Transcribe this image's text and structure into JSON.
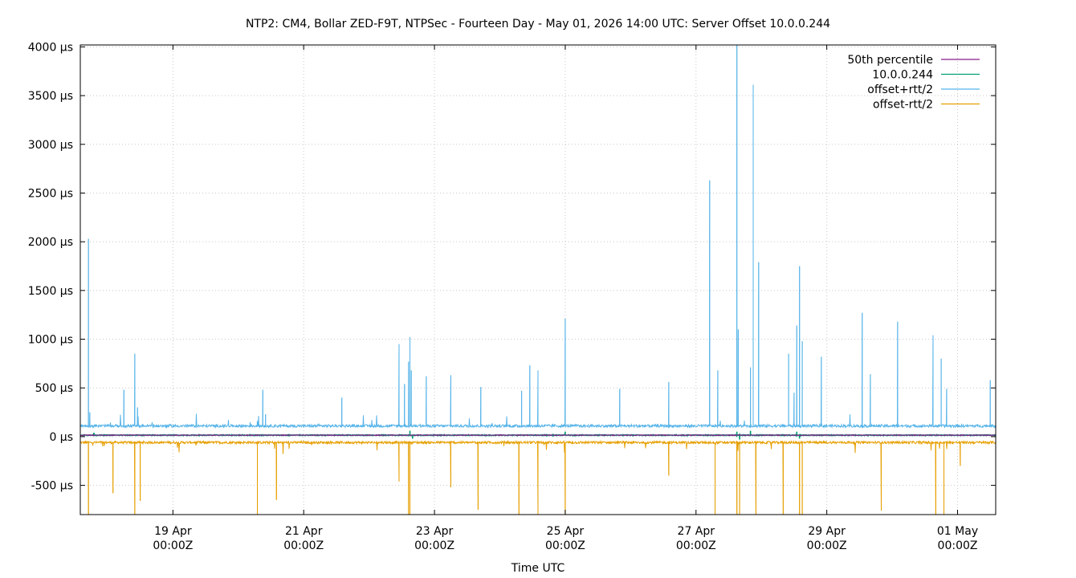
{
  "chart_data": {
    "type": "line",
    "title": "NTP2: CM4, Bollar ZED-F9T, NTPSec - Fourteen Day - May 01, 2026 14:00 UTC: Server Offset 10.0.0.244",
    "xlabel": "Time UTC",
    "ylabel": "",
    "y_unit": "µs",
    "xlim": [
      "2026-04-17T14:00Z",
      "2026-05-01T14:00Z"
    ],
    "ylim": [
      -800,
      4020
    ],
    "x_ticks": [
      {
        "x": "2026-04-19T00:00Z",
        "line1": "19 Apr",
        "line2": "00:00Z"
      },
      {
        "x": "2026-04-21T00:00Z",
        "line1": "21 Apr",
        "line2": "00:00Z"
      },
      {
        "x": "2026-04-23T00:00Z",
        "line1": "23 Apr",
        "line2": "00:00Z"
      },
      {
        "x": "2026-04-25T00:00Z",
        "line1": "25 Apr",
        "line2": "00:00Z"
      },
      {
        "x": "2026-04-27T00:00Z",
        "line1": "27 Apr",
        "line2": "00:00Z"
      },
      {
        "x": "2026-04-29T00:00Z",
        "line1": "29 Apr",
        "line2": "00:00Z"
      },
      {
        "x": "2026-05-01T00:00Z",
        "line1": "01 May",
        "line2": "00:00Z"
      }
    ],
    "y_ticks": [
      {
        "value": -500,
        "label": "-500 µs"
      },
      {
        "value": 0,
        "label": "0 µs"
      },
      {
        "value": 500,
        "label": "500 µs"
      },
      {
        "value": 1000,
        "label": "1000 µs"
      },
      {
        "value": 1500,
        "label": "1500 µs"
      },
      {
        "value": 2000,
        "label": "2000 µs"
      },
      {
        "value": 2500,
        "label": "2500 µs"
      },
      {
        "value": 3000,
        "label": "3000 µs"
      },
      {
        "value": 3500,
        "label": "3500 µs"
      },
      {
        "value": 4000,
        "label": "4000 µs"
      }
    ],
    "grid": true,
    "legend_position": "top-right",
    "series": [
      {
        "name": "50th percentile",
        "color": "#8b1a8b",
        "baseline": 15,
        "points": []
      },
      {
        "name": "10.0.0.244",
        "color": "#009e73",
        "baseline": 15,
        "points": [
          [
            "2026-04-17T19:00Z",
            40
          ],
          [
            "2026-04-22T15:00Z",
            60
          ],
          [
            "2026-04-22T16:00Z",
            -20
          ],
          [
            "2026-04-25T00:00Z",
            50
          ],
          [
            "2026-04-27T15:00Z",
            50
          ],
          [
            "2026-04-27T16:00Z",
            -30
          ],
          [
            "2026-04-27T20:00Z",
            60
          ],
          [
            "2026-04-28T13:00Z",
            50
          ],
          [
            "2026-04-28T14:00Z",
            -20
          ]
        ]
      },
      {
        "name": "offset+rtt/2",
        "color": "#56b4e9",
        "baseline": 110,
        "points": [
          [
            "2026-04-17T17:00Z",
            2030
          ],
          [
            "2026-04-17T17:30Z",
            250
          ],
          [
            "2026-04-18T06:00Z",
            480
          ],
          [
            "2026-04-18T10:00Z",
            850
          ],
          [
            "2026-04-18T11:00Z",
            300
          ],
          [
            "2026-04-20T09:00Z",
            480
          ],
          [
            "2026-04-20T10:00Z",
            230
          ],
          [
            "2026-04-21T14:00Z",
            400
          ],
          [
            "2026-04-22T11:00Z",
            950
          ],
          [
            "2026-04-22T13:00Z",
            540
          ],
          [
            "2026-04-22T14:30Z",
            770
          ],
          [
            "2026-04-22T15:00Z",
            1020
          ],
          [
            "2026-04-22T15:30Z",
            680
          ],
          [
            "2026-04-22T21:00Z",
            620
          ],
          [
            "2026-04-23T06:00Z",
            630
          ],
          [
            "2026-04-23T17:00Z",
            510
          ],
          [
            "2026-04-24T08:00Z",
            470
          ],
          [
            "2026-04-24T11:00Z",
            730
          ],
          [
            "2026-04-24T14:00Z",
            680
          ],
          [
            "2026-04-25T00:00Z",
            1210
          ],
          [
            "2026-04-25T20:00Z",
            490
          ],
          [
            "2026-04-26T14:00Z",
            560
          ],
          [
            "2026-04-27T05:00Z",
            2630
          ],
          [
            "2026-04-27T08:00Z",
            680
          ],
          [
            "2026-04-27T15:00Z",
            4020
          ],
          [
            "2026-04-27T15:30Z",
            1100
          ],
          [
            "2026-04-27T20:00Z",
            710
          ],
          [
            "2026-04-27T21:00Z",
            3610
          ],
          [
            "2026-04-27T23:00Z",
            1790
          ],
          [
            "2026-04-28T10:00Z",
            850
          ],
          [
            "2026-04-28T12:00Z",
            450
          ],
          [
            "2026-04-28T13:00Z",
            1140
          ],
          [
            "2026-04-28T14:00Z",
            1750
          ],
          [
            "2026-04-28T15:00Z",
            980
          ],
          [
            "2026-04-28T22:00Z",
            820
          ],
          [
            "2026-04-29T13:00Z",
            1270
          ],
          [
            "2026-04-29T16:00Z",
            640
          ],
          [
            "2026-04-30T02:00Z",
            1180
          ],
          [
            "2026-04-30T15:00Z",
            1040
          ],
          [
            "2026-04-30T18:00Z",
            800
          ],
          [
            "2026-04-30T20:00Z",
            490
          ],
          [
            "2026-05-01T12:00Z",
            580
          ]
        ]
      },
      {
        "name": "offset-rtt/2",
        "color": "#e69f00",
        "baseline": -60,
        "points": [
          [
            "2026-04-17T17:00Z",
            -800
          ],
          [
            "2026-04-18T02:00Z",
            -580
          ],
          [
            "2026-04-18T10:00Z",
            -800
          ],
          [
            "2026-04-18T12:00Z",
            -660
          ],
          [
            "2026-04-20T07:00Z",
            -800
          ],
          [
            "2026-04-20T14:00Z",
            -650
          ],
          [
            "2026-04-22T11:00Z",
            -460
          ],
          [
            "2026-04-22T14:30Z",
            -800
          ],
          [
            "2026-04-22T15:00Z",
            -800
          ],
          [
            "2026-04-23T06:00Z",
            -520
          ],
          [
            "2026-04-23T16:00Z",
            -750
          ],
          [
            "2026-04-24T07:00Z",
            -800
          ],
          [
            "2026-04-24T14:00Z",
            -800
          ],
          [
            "2026-04-25T00:00Z",
            -800
          ],
          [
            "2026-04-26T14:00Z",
            -400
          ],
          [
            "2026-04-27T07:00Z",
            -800
          ],
          [
            "2026-04-27T15:00Z",
            -800
          ],
          [
            "2026-04-27T16:00Z",
            -800
          ],
          [
            "2026-04-27T22:00Z",
            -800
          ],
          [
            "2026-04-28T08:00Z",
            -800
          ],
          [
            "2026-04-28T14:00Z",
            -800
          ],
          [
            "2026-04-28T15:00Z",
            -800
          ],
          [
            "2026-04-29T20:00Z",
            -760
          ],
          [
            "2026-04-30T16:00Z",
            -800
          ],
          [
            "2026-04-30T19:00Z",
            -800
          ],
          [
            "2026-05-01T01:00Z",
            -300
          ]
        ]
      }
    ]
  }
}
